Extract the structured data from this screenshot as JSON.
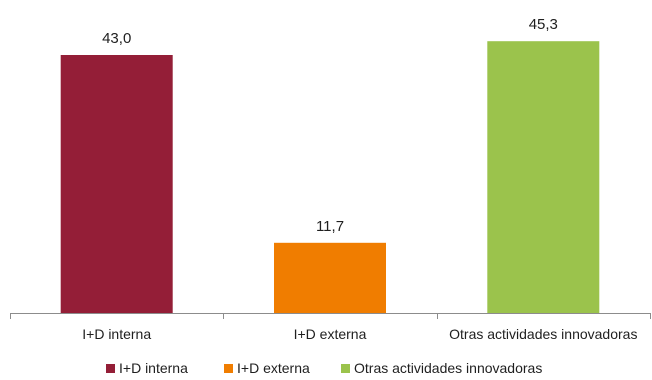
{
  "chart_data": {
    "type": "bar",
    "categories": [
      "I+D interna",
      "I+D externa",
      "Otras actividades innovadoras"
    ],
    "values": [
      43.0,
      11.7,
      45.3
    ],
    "value_labels": [
      "43,0",
      "11,7",
      "45,3"
    ],
    "colors": [
      "#941e37",
      "#f07d00",
      "#9bc34c"
    ],
    "legend": {
      "position": "bottom",
      "entries": [
        "I+D interna",
        "I+D externa",
        "Otras actividades innovadoras"
      ]
    },
    "title": "",
    "xlabel": "",
    "ylabel": "",
    "ylim": [
      0,
      47
    ],
    "grid": false,
    "y_axis_visible": false
  }
}
